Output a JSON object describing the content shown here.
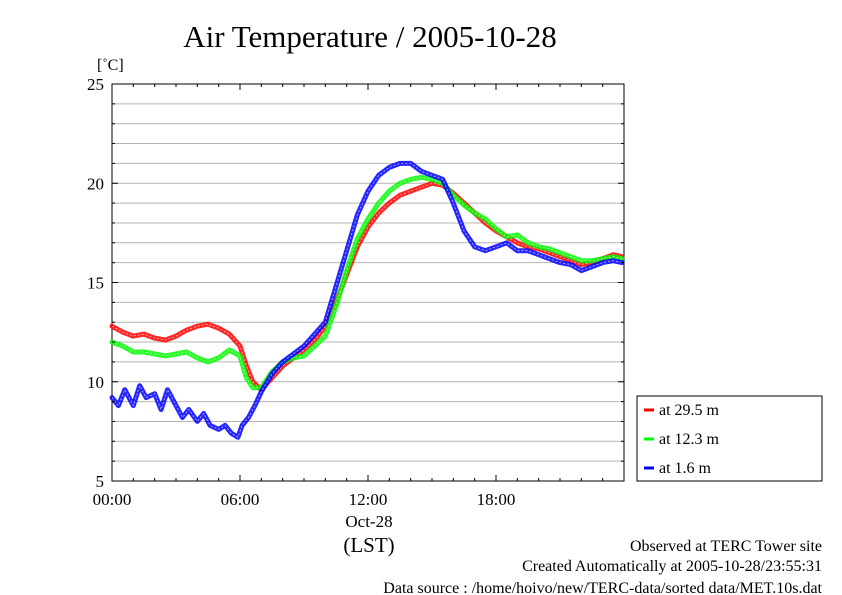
{
  "chart_data": {
    "type": "line",
    "title": "Air Temperature / 2005-10-28",
    "yunit": "[˚C]",
    "ylim": [
      5,
      25
    ],
    "xlim": [
      0,
      24
    ],
    "y_ticks": [
      "5",
      "10",
      "15",
      "20",
      "25"
    ],
    "x_ticks": [
      "00:00",
      "06:00",
      "12:00",
      "18:00"
    ],
    "x_date_label": "Oct-28",
    "x_unit_label": "(LST)",
    "grid": true,
    "legend_position": "right-bottom",
    "series": [
      {
        "name": "at 29.5 m",
        "color": "#ff0000",
        "points": [
          [
            0,
            12.8
          ],
          [
            0.5,
            12.5
          ],
          [
            1,
            12.3
          ],
          [
            1.5,
            12.4
          ],
          [
            2,
            12.2
          ],
          [
            2.5,
            12.1
          ],
          [
            3,
            12.3
          ],
          [
            3.5,
            12.6
          ],
          [
            4,
            12.8
          ],
          [
            4.5,
            12.9
          ],
          [
            5,
            12.7
          ],
          [
            5.5,
            12.4
          ],
          [
            6,
            11.8
          ],
          [
            6.3,
            10.8
          ],
          [
            6.6,
            10.0
          ],
          [
            7,
            9.6
          ],
          [
            7.5,
            10.2
          ],
          [
            8,
            10.8
          ],
          [
            8.5,
            11.2
          ],
          [
            9,
            11.6
          ],
          [
            9.5,
            12.1
          ],
          [
            10,
            12.8
          ],
          [
            10.5,
            14.0
          ],
          [
            11,
            15.4
          ],
          [
            11.5,
            16.8
          ],
          [
            12,
            17.8
          ],
          [
            12.5,
            18.5
          ],
          [
            13,
            19.0
          ],
          [
            13.5,
            19.4
          ],
          [
            14,
            19.6
          ],
          [
            14.5,
            19.8
          ],
          [
            15,
            20.0
          ],
          [
            15.5,
            19.9
          ],
          [
            16,
            19.5
          ],
          [
            16.5,
            19.0
          ],
          [
            17,
            18.5
          ],
          [
            17.5,
            18.0
          ],
          [
            18,
            17.6
          ],
          [
            18.5,
            17.3
          ],
          [
            19,
            17.0
          ],
          [
            19.5,
            16.8
          ],
          [
            20,
            16.7
          ],
          [
            20.5,
            16.5
          ],
          [
            21,
            16.3
          ],
          [
            21.5,
            16.1
          ],
          [
            22,
            15.9
          ],
          [
            22.5,
            16.0
          ],
          [
            23,
            16.2
          ],
          [
            23.5,
            16.4
          ],
          [
            23.9,
            16.3
          ]
        ]
      },
      {
        "name": "at 12.3 m",
        "color": "#00ff00",
        "points": [
          [
            0,
            12.0
          ],
          [
            0.5,
            11.8
          ],
          [
            1,
            11.5
          ],
          [
            1.5,
            11.5
          ],
          [
            2,
            11.4
          ],
          [
            2.5,
            11.3
          ],
          [
            3,
            11.4
          ],
          [
            3.5,
            11.5
          ],
          [
            4,
            11.2
          ],
          [
            4.5,
            11.0
          ],
          [
            5,
            11.2
          ],
          [
            5.5,
            11.6
          ],
          [
            6,
            11.3
          ],
          [
            6.3,
            10.2
          ],
          [
            6.6,
            9.7
          ],
          [
            7,
            9.7
          ],
          [
            7.5,
            10.5
          ],
          [
            8,
            11.0
          ],
          [
            8.5,
            11.2
          ],
          [
            9,
            11.3
          ],
          [
            9.5,
            11.8
          ],
          [
            10,
            12.3
          ],
          [
            10.5,
            13.8
          ],
          [
            11,
            15.6
          ],
          [
            11.5,
            17.2
          ],
          [
            12,
            18.2
          ],
          [
            12.5,
            19.0
          ],
          [
            13,
            19.6
          ],
          [
            13.5,
            20.0
          ],
          [
            14,
            20.2
          ],
          [
            14.5,
            20.3
          ],
          [
            15,
            20.2
          ],
          [
            15.5,
            20.0
          ],
          [
            16,
            19.4
          ],
          [
            16.5,
            18.9
          ],
          [
            17,
            18.5
          ],
          [
            17.5,
            18.2
          ],
          [
            18,
            17.7
          ],
          [
            18.5,
            17.3
          ],
          [
            19,
            17.4
          ],
          [
            19.5,
            17.0
          ],
          [
            20,
            16.8
          ],
          [
            20.5,
            16.7
          ],
          [
            21,
            16.5
          ],
          [
            21.5,
            16.3
          ],
          [
            22,
            16.1
          ],
          [
            22.5,
            16.1
          ],
          [
            23,
            16.2
          ],
          [
            23.5,
            16.3
          ],
          [
            23.9,
            16.2
          ]
        ]
      },
      {
        "name": "at 1.6 m",
        "color": "#0000ff",
        "points": [
          [
            0,
            9.2
          ],
          [
            0.3,
            8.8
          ],
          [
            0.6,
            9.6
          ],
          [
            1,
            8.8
          ],
          [
            1.3,
            9.8
          ],
          [
            1.6,
            9.2
          ],
          [
            2,
            9.4
          ],
          [
            2.3,
            8.6
          ],
          [
            2.6,
            9.6
          ],
          [
            3,
            8.8
          ],
          [
            3.3,
            8.2
          ],
          [
            3.6,
            8.6
          ],
          [
            4,
            8.0
          ],
          [
            4.3,
            8.4
          ],
          [
            4.6,
            7.8
          ],
          [
            5,
            7.6
          ],
          [
            5.3,
            7.8
          ],
          [
            5.6,
            7.4
          ],
          [
            5.9,
            7.2
          ],
          [
            6.1,
            7.8
          ],
          [
            6.4,
            8.2
          ],
          [
            6.7,
            8.8
          ],
          [
            7,
            9.5
          ],
          [
            7.5,
            10.4
          ],
          [
            8,
            11.0
          ],
          [
            8.5,
            11.4
          ],
          [
            9,
            11.8
          ],
          [
            9.5,
            12.4
          ],
          [
            10,
            13.0
          ],
          [
            10.5,
            14.8
          ],
          [
            11,
            16.6
          ],
          [
            11.5,
            18.4
          ],
          [
            12,
            19.6
          ],
          [
            12.5,
            20.4
          ],
          [
            13,
            20.8
          ],
          [
            13.5,
            21.0
          ],
          [
            14,
            21.0
          ],
          [
            14.5,
            20.6
          ],
          [
            15,
            20.4
          ],
          [
            15.5,
            20.2
          ],
          [
            16,
            19.0
          ],
          [
            16.5,
            17.6
          ],
          [
            17,
            16.8
          ],
          [
            17.5,
            16.6
          ],
          [
            18,
            16.8
          ],
          [
            18.5,
            17.0
          ],
          [
            19,
            16.6
          ],
          [
            19.5,
            16.6
          ],
          [
            20,
            16.4
          ],
          [
            20.5,
            16.2
          ],
          [
            21,
            16.0
          ],
          [
            21.5,
            15.9
          ],
          [
            22,
            15.6
          ],
          [
            22.5,
            15.8
          ],
          [
            23,
            16.0
          ],
          [
            23.5,
            16.1
          ],
          [
            23.9,
            16.0
          ]
        ]
      }
    ]
  },
  "footer": {
    "line1": "Observed at TERC Tower site",
    "line2": "Created Automatically at 2005-10-28/23:55:31",
    "line3": "Data source : /home/hoivo/new/TERC-data/sorted  data/MET.10s.dat"
  }
}
